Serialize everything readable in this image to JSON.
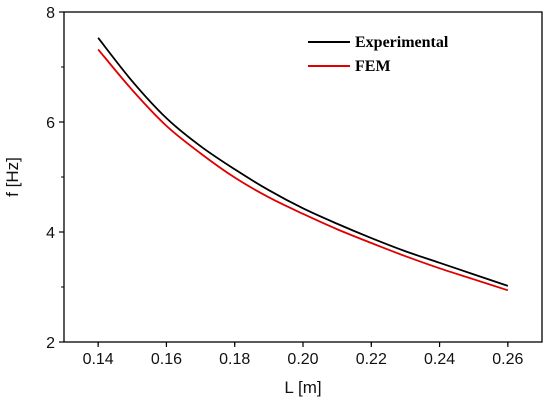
{
  "chart_data": {
    "type": "line",
    "xlabel": "L [m]",
    "ylabel": "f  [Hz]",
    "xlim": [
      0.13,
      0.27
    ],
    "ylim": [
      2,
      8
    ],
    "x_ticks": [
      "0.14",
      "0.16",
      "0.18",
      "0.20",
      "0.22",
      "0.24",
      "0.26"
    ],
    "y_ticks": [
      "2",
      "4",
      "6",
      "8"
    ],
    "legend_position": "top-right",
    "grid": false,
    "x": [
      0.14,
      0.15,
      0.16,
      0.17,
      0.18,
      0.19,
      0.2,
      0.21,
      0.22,
      0.23,
      0.24,
      0.25,
      0.26
    ],
    "series": [
      {
        "name": "Experimental",
        "color": "#000000",
        "values": [
          7.53,
          6.74,
          6.07,
          5.56,
          5.14,
          4.76,
          4.43,
          4.15,
          3.89,
          3.65,
          3.44,
          3.23,
          3.02
        ]
      },
      {
        "name": "FEM",
        "color": "#e00000",
        "values": [
          7.32,
          6.58,
          5.93,
          5.43,
          4.99,
          4.63,
          4.33,
          4.05,
          3.8,
          3.56,
          3.34,
          3.14,
          2.94
        ]
      }
    ]
  }
}
